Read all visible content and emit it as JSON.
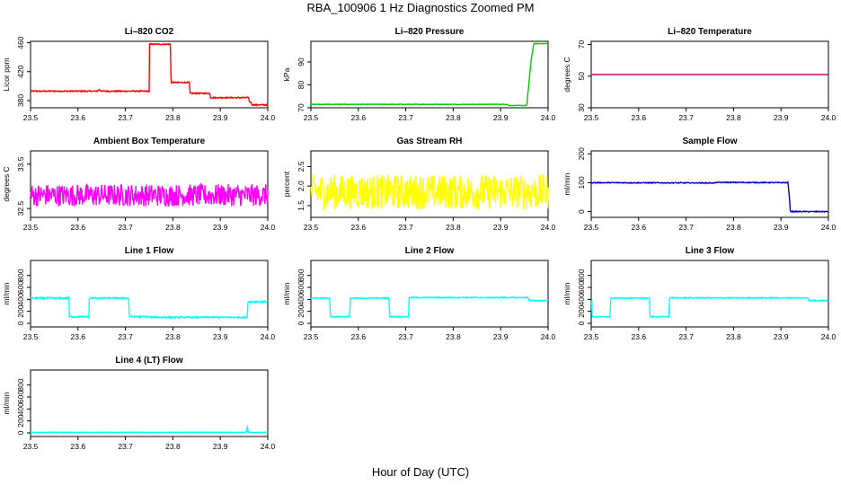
{
  "figure": {
    "title": "RBA_100906  1 Hz Diagnostics Zoomed PM",
    "xlabel": "Hour of Day (UTC)"
  },
  "chart_data": [
    {
      "type": "line",
      "title": "Li–820 CO2",
      "ylabel": "Licor ppm",
      "color": "#ff0000",
      "xlim": [
        23.5,
        24.0
      ],
      "ylim": [
        370,
        462
      ],
      "xticks": [
        "23.5",
        "23.6",
        "23.7",
        "23.8",
        "23.9",
        "24.0"
      ],
      "yticks": [
        {
          "v": 380,
          "label": "380"
        },
        {
          "v": 420,
          "label": "420"
        },
        {
          "v": 460,
          "label": "460"
        }
      ],
      "noise": 0.8,
      "series": [
        {
          "x": [
            23.5,
            23.64,
            23.645,
            23.65,
            23.75,
            23.751,
            23.795,
            23.796,
            23.835,
            23.836,
            23.878,
            23.879,
            23.96,
            23.961,
            23.965,
            23.966,
            24.0
          ],
          "y": [
            393,
            393,
            395,
            393,
            393,
            458,
            458,
            405,
            405,
            390,
            390,
            384,
            384,
            378,
            378,
            374,
            374
          ]
        }
      ]
    },
    {
      "type": "line",
      "title": "Li–820 Pressure",
      "ylabel": "kPa",
      "color": "#00cc00",
      "xlim": [
        23.5,
        24.0
      ],
      "ylim": [
        70,
        99
      ],
      "xticks": [
        "23.5",
        "23.6",
        "23.7",
        "23.8",
        "23.9",
        "24.0"
      ],
      "yticks": [
        {
          "v": 70,
          "label": "70"
        },
        {
          "v": 80,
          "label": "80"
        },
        {
          "v": 90,
          "label": "90"
        }
      ],
      "noise": 0.1,
      "series": [
        {
          "x": [
            23.5,
            23.915,
            23.916,
            23.955,
            23.965,
            23.97,
            24.0
          ],
          "y": [
            71.5,
            71.5,
            71,
            71,
            92,
            98,
            98
          ]
        }
      ]
    },
    {
      "type": "line",
      "title": "Li–820 Temperature",
      "ylabel": "degrees C",
      "color": "#cc0066",
      "xlim": [
        23.5,
        24.0
      ],
      "ylim": [
        30,
        72
      ],
      "xticks": [
        "23.5",
        "23.6",
        "23.7",
        "23.8",
        "23.9",
        "24.0"
      ],
      "yticks": [
        {
          "v": 30,
          "label": "30"
        },
        {
          "v": 50,
          "label": "50"
        },
        {
          "v": 70,
          "label": "70"
        }
      ],
      "noise": 0,
      "series": [
        {
          "x": [
            23.5,
            24.0
          ],
          "y": [
            51,
            51
          ]
        }
      ]
    },
    {
      "type": "line",
      "title": "Ambient Box Temperature",
      "ylabel": "degrees C",
      "color": "#ff00ff",
      "xlim": [
        23.5,
        24.0
      ],
      "ylim": [
        32.3,
        33.8
      ],
      "xticks": [
        "23.5",
        "23.6",
        "23.7",
        "23.8",
        "23.9",
        "24.0"
      ],
      "yticks": [
        {
          "v": 32.5,
          "label": "32.5"
        },
        {
          "v": 33.5,
          "label": "33.5"
        }
      ],
      "noise": 0.25,
      "series": [
        {
          "x": [
            23.5,
            24.0
          ],
          "y": [
            32.8,
            32.8
          ]
        }
      ]
    },
    {
      "type": "line",
      "title": "Gas Stream RH",
      "ylabel": "percent",
      "color": "#ffff00",
      "xlim": [
        23.5,
        24.0
      ],
      "ylim": [
        1.2,
        2.9
      ],
      "xticks": [
        "23.5",
        "23.6",
        "23.7",
        "23.8",
        "23.9",
        "24.0"
      ],
      "yticks": [
        {
          "v": 1.5,
          "label": "1.5"
        },
        {
          "v": 2.0,
          "label": "2.0"
        },
        {
          "v": 2.5,
          "label": "2.5"
        }
      ],
      "noise": 0.45,
      "series": [
        {
          "x": [
            23.5,
            24.0
          ],
          "y": [
            1.85,
            1.85
          ]
        }
      ]
    },
    {
      "type": "line",
      "title": "Sample Flow",
      "ylabel": "ml/min",
      "color": "#0000cc",
      "xlim": [
        23.5,
        24.0
      ],
      "ylim": [
        -20,
        210
      ],
      "xticks": [
        "23.5",
        "23.6",
        "23.7",
        "23.8",
        "23.9",
        "24.0"
      ],
      "yticks": [
        {
          "v": 0,
          "label": "0"
        },
        {
          "v": 100,
          "label": "100"
        },
        {
          "v": 200,
          "label": "200"
        }
      ],
      "noise": 1.5,
      "series": [
        {
          "x": [
            23.5,
            23.76,
            23.765,
            23.915,
            23.92,
            24.0
          ],
          "y": [
            100,
            99,
            101,
            100,
            0,
            0
          ]
        }
      ]
    },
    {
      "type": "line",
      "title": "Line 1 Flow",
      "ylabel": "ml/min",
      "color": "#00ffff",
      "xlim": [
        23.5,
        24.0
      ],
      "ylim": [
        -60,
        1050
      ],
      "xticks": [
        "23.5",
        "23.6",
        "23.7",
        "23.8",
        "23.9",
        "24.0"
      ],
      "yticks": [
        {
          "v": 0,
          "label": "0"
        },
        {
          "v": 200,
          "label": "200"
        },
        {
          "v": 400,
          "label": "400"
        },
        {
          "v": 600,
          "label": "600"
        },
        {
          "v": 800,
          "label": "800"
        }
      ],
      "noise": 12,
      "series": [
        {
          "x": [
            23.5,
            23.581,
            23.582,
            23.623,
            23.624,
            23.707,
            23.708,
            23.75,
            23.751,
            23.957,
            23.958,
            24.0
          ],
          "y": [
            420,
            420,
            110,
            110,
            420,
            420,
            110,
            110,
            100,
            100,
            360,
            360
          ]
        }
      ]
    },
    {
      "type": "line",
      "title": "Line 2 Flow",
      "ylabel": "ml/min",
      "color": "#00ffff",
      "xlim": [
        23.5,
        24.0
      ],
      "ylim": [
        -60,
        1050
      ],
      "xticks": [
        "23.5",
        "23.6",
        "23.7",
        "23.8",
        "23.9",
        "24.0"
      ],
      "yticks": [
        {
          "v": 0,
          "label": "0"
        },
        {
          "v": 200,
          "label": "200"
        },
        {
          "v": 400,
          "label": "400"
        },
        {
          "v": 600,
          "label": "600"
        },
        {
          "v": 800,
          "label": "800"
        }
      ],
      "noise": 8,
      "series": [
        {
          "x": [
            23.5,
            23.54,
            23.541,
            23.582,
            23.583,
            23.665,
            23.666,
            23.706,
            23.707,
            23.958,
            23.959,
            24.0
          ],
          "y": [
            420,
            420,
            110,
            110,
            420,
            420,
            110,
            110,
            430,
            430,
            380,
            380
          ]
        }
      ]
    },
    {
      "type": "line",
      "title": "Line 3 Flow",
      "ylabel": "ml/min",
      "color": "#00ffff",
      "xlim": [
        23.5,
        24.0
      ],
      "ylim": [
        -60,
        1050
      ],
      "xticks": [
        "23.5",
        "23.6",
        "23.7",
        "23.8",
        "23.9",
        "24.0"
      ],
      "yticks": [
        {
          "v": 0,
          "label": "0"
        },
        {
          "v": 200,
          "label": "200"
        },
        {
          "v": 400,
          "label": "400"
        },
        {
          "v": 600,
          "label": "600"
        },
        {
          "v": 800,
          "label": "800"
        }
      ],
      "noise": 8,
      "series": [
        {
          "x": [
            23.5,
            23.501,
            23.502,
            23.54,
            23.541,
            23.623,
            23.624,
            23.664,
            23.665,
            23.958,
            23.959,
            24.0
          ],
          "y": [
            380,
            380,
            110,
            110,
            420,
            420,
            110,
            110,
            425,
            425,
            380,
            380
          ]
        }
      ]
    },
    {
      "type": "line",
      "title": "Line 4 (LT) Flow",
      "ylabel": "ml/min",
      "color": "#00ffff",
      "xlim": [
        23.5,
        24.0
      ],
      "ylim": [
        -60,
        1050
      ],
      "xticks": [
        "23.5",
        "23.6",
        "23.7",
        "23.8",
        "23.9",
        "24.0"
      ],
      "yticks": [
        {
          "v": 0,
          "label": "0"
        },
        {
          "v": 200,
          "label": "200"
        },
        {
          "v": 400,
          "label": "400"
        },
        {
          "v": 600,
          "label": "600"
        },
        {
          "v": 800,
          "label": "800"
        }
      ],
      "noise": 3,
      "series": [
        {
          "x": [
            23.5,
            23.955,
            23.957,
            23.958,
            23.96,
            24.0
          ],
          "y": [
            10,
            10,
            120,
            40,
            10,
            10
          ]
        }
      ]
    }
  ]
}
